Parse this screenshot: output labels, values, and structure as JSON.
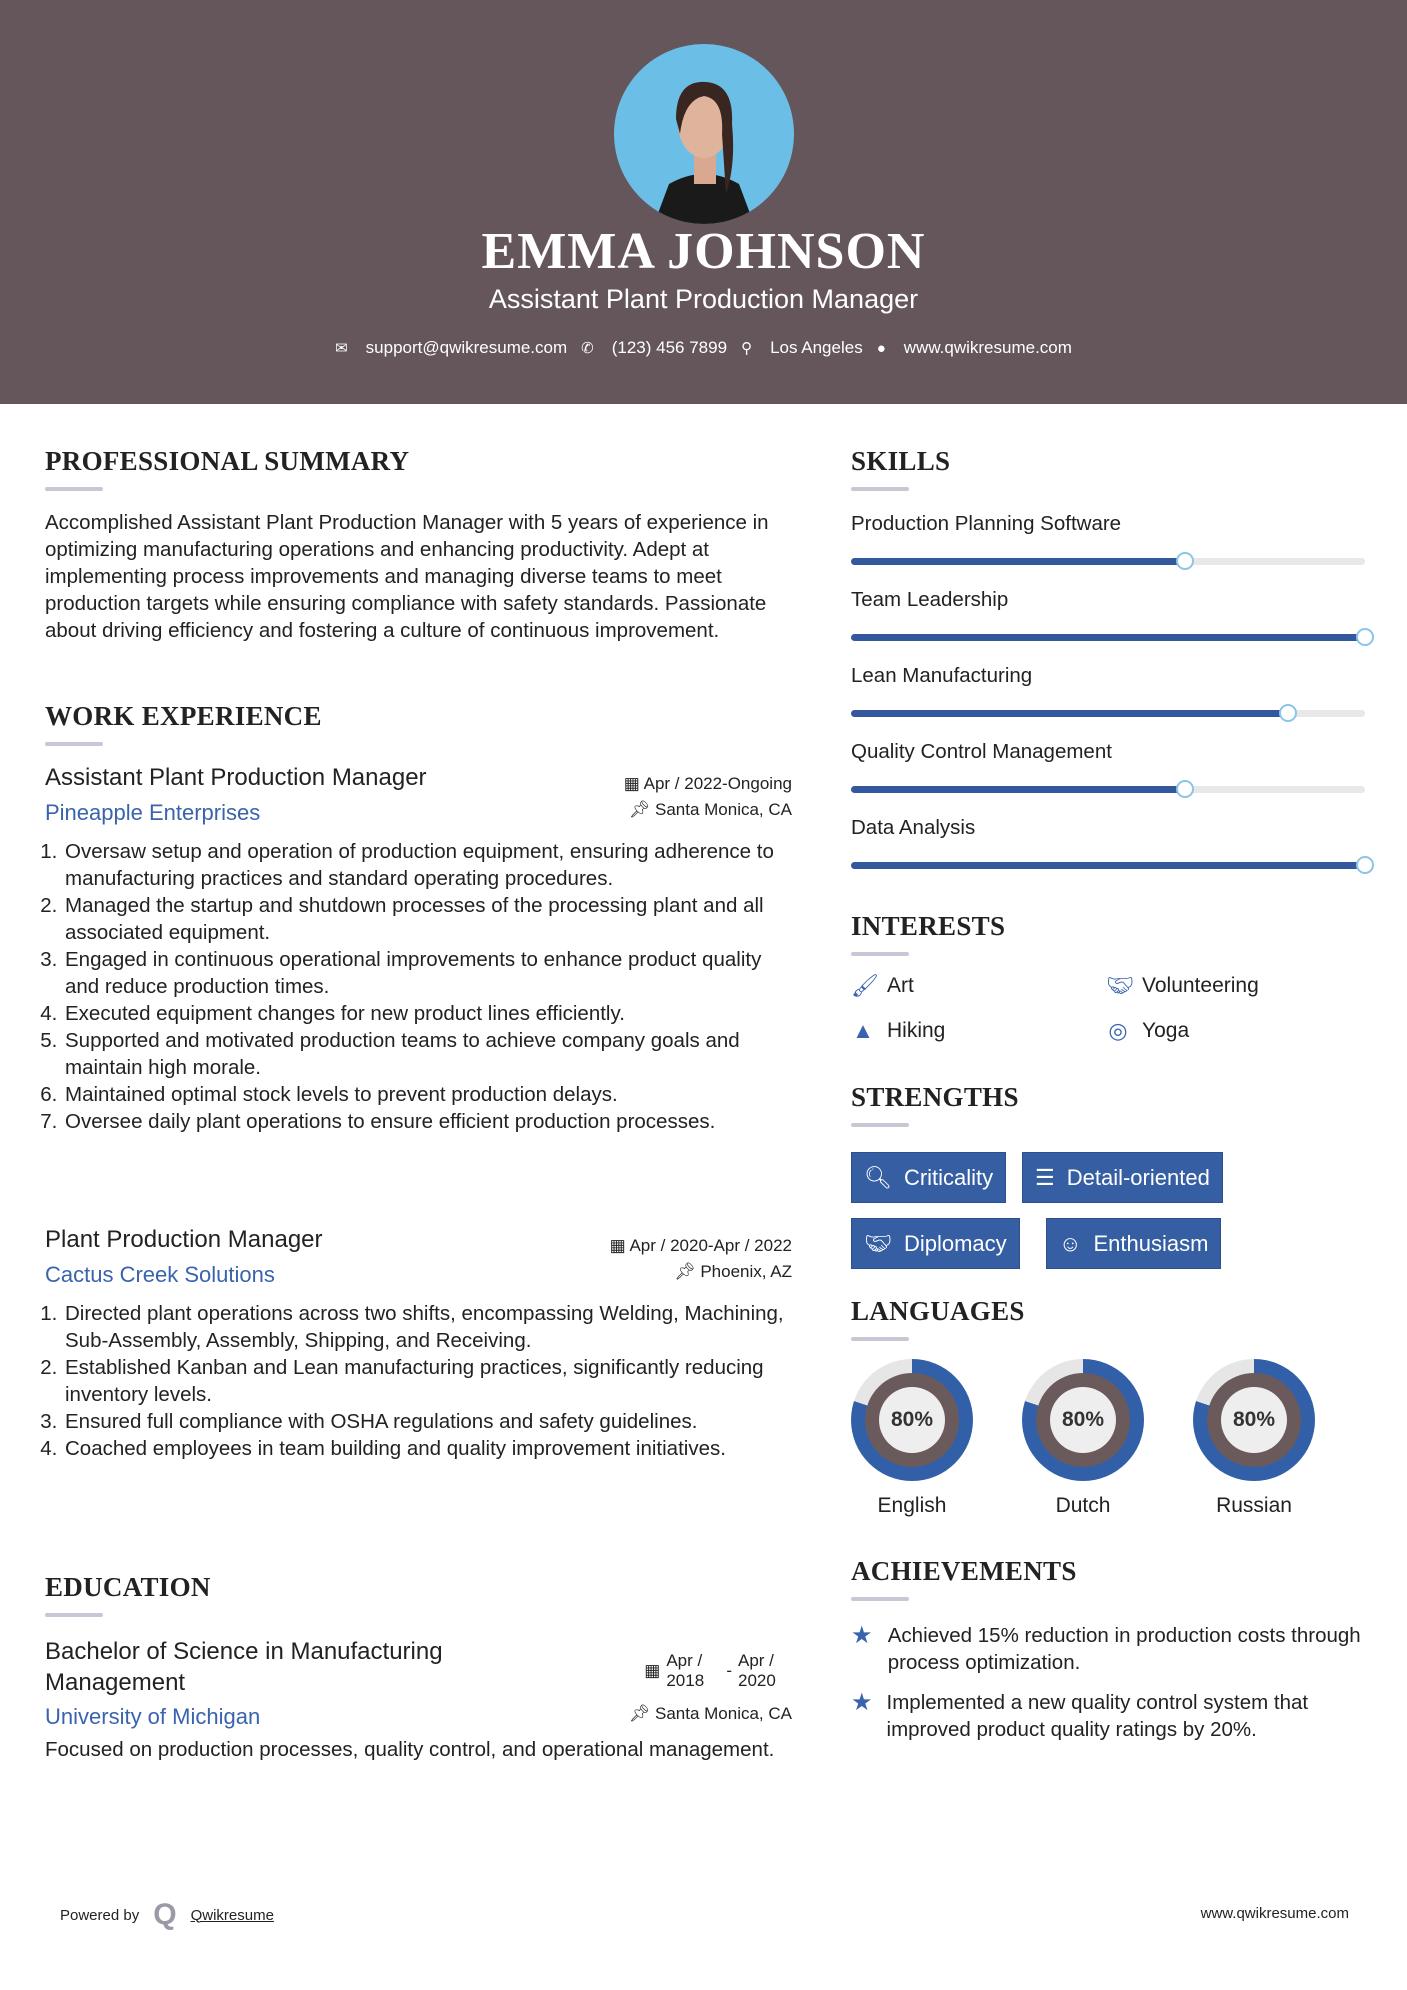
{
  "header": {
    "name": "EMMA JOHNSON",
    "title": "Assistant Plant Production Manager",
    "contact": [
      {
        "icon": "envelope-icon",
        "text": "support@qwikresume.com"
      },
      {
        "icon": "phone-icon",
        "text": "(123) 456 7899"
      },
      {
        "icon": "map-marker-icon",
        "text": "Los Angeles"
      },
      {
        "icon": "globe-icon",
        "text": "www.qwikresume.com"
      }
    ]
  },
  "summary": {
    "heading": "PROFESSIONAL SUMMARY",
    "text": "Accomplished Assistant Plant Production Manager with 5 years of experience in optimizing manufacturing operations and enhancing productivity. Adept at implementing process improvements and managing diverse teams to meet production targets while ensuring compliance with safety standards. Passionate about driving efficiency and fostering a culture of continuous improvement."
  },
  "experience": {
    "heading": "WORK EXPERIENCE",
    "jobs": [
      {
        "title": "Assistant Plant Production Manager",
        "company": "Pineapple Enterprises",
        "dates": "Apr / 2022-Ongoing",
        "location": "Santa Monica, CA",
        "bullets": [
          "Oversaw setup and operation of production equipment, ensuring adherence to manufacturing practices and standard operating procedures.",
          "Managed the startup and shutdown processes of the processing plant and all associated equipment.",
          "Engaged in continuous operational improvements to enhance product quality and reduce production times.",
          "Executed equipment changes for new product lines efficiently.",
          "Supported and motivated production teams to achieve company goals and maintain high morale.",
          "Maintained optimal stock levels to prevent production delays.",
          "Oversee daily plant operations to ensure efficient production processes."
        ]
      },
      {
        "title": "Plant Production Manager",
        "company": "Cactus Creek Solutions",
        "dates": "Apr / 2020-Apr / 2022",
        "location": "Phoenix, AZ",
        "bullets": [
          "Directed plant operations across two shifts, encompassing Welding, Machining, Sub-Assembly, Assembly, Shipping, and Receiving.",
          "Established Kanban and Lean manufacturing practices, significantly reducing inventory levels.",
          "Ensured full compliance with OSHA regulations and safety guidelines.",
          "Coached employees in team building and quality improvement initiatives."
        ]
      }
    ]
  },
  "education": {
    "heading": "EDUCATION",
    "degree": "Bachelor of Science in Manufacturing Management",
    "school": "University of Michigan",
    "start": "Apr / 2018",
    "end": "Apr / 2020",
    "separator": "-",
    "location": "Santa Monica, CA",
    "description": "Focused on production processes, quality control, and operational management."
  },
  "skills": {
    "heading": "SKILLS",
    "items": [
      {
        "name": "Production Planning Software",
        "level": 65
      },
      {
        "name": "Team Leadership",
        "level": 100
      },
      {
        "name": "Lean Manufacturing",
        "level": 85
      },
      {
        "name": "Quality Control Management",
        "level": 65
      },
      {
        "name": "Data Analysis",
        "level": 100
      }
    ]
  },
  "interests": {
    "heading": "INTERESTS",
    "items": [
      {
        "icon": "paintbrush-icon",
        "label": "Art"
      },
      {
        "icon": "handshake-icon",
        "label": "Volunteering"
      },
      {
        "icon": "tree-icon",
        "label": "Hiking"
      },
      {
        "icon": "life-ring-icon",
        "label": "Yoga"
      }
    ]
  },
  "strengths": {
    "heading": "STRENGTHS",
    "items": [
      {
        "icon": "search-icon",
        "label": "Criticality"
      },
      {
        "icon": "list-icon",
        "label": "Detail-oriented"
      },
      {
        "icon": "handshake-icon",
        "label": "Diplomacy"
      },
      {
        "icon": "smile-icon",
        "label": "Enthusiasm"
      }
    ]
  },
  "languages": {
    "heading": "LANGUAGES",
    "items": [
      {
        "name": "English",
        "percent": "80%",
        "level": 80
      },
      {
        "name": "Dutch",
        "percent": "80%",
        "level": 80
      },
      {
        "name": "Russian",
        "percent": "80%",
        "level": 80
      }
    ]
  },
  "achievements": {
    "heading": "ACHIEVEMENTS",
    "items": [
      "Achieved 15% reduction in production costs through process optimization.",
      "Implemented a new quality control system that improved product quality ratings by 20%."
    ]
  },
  "footer": {
    "powered_by": "Powered by",
    "brand": "Qwikresume",
    "website": "www.qwikresume.com"
  },
  "colors": {
    "header_bg": "#64565b",
    "accent": "#365fa3",
    "photo_bg": "#6bbfe6"
  }
}
